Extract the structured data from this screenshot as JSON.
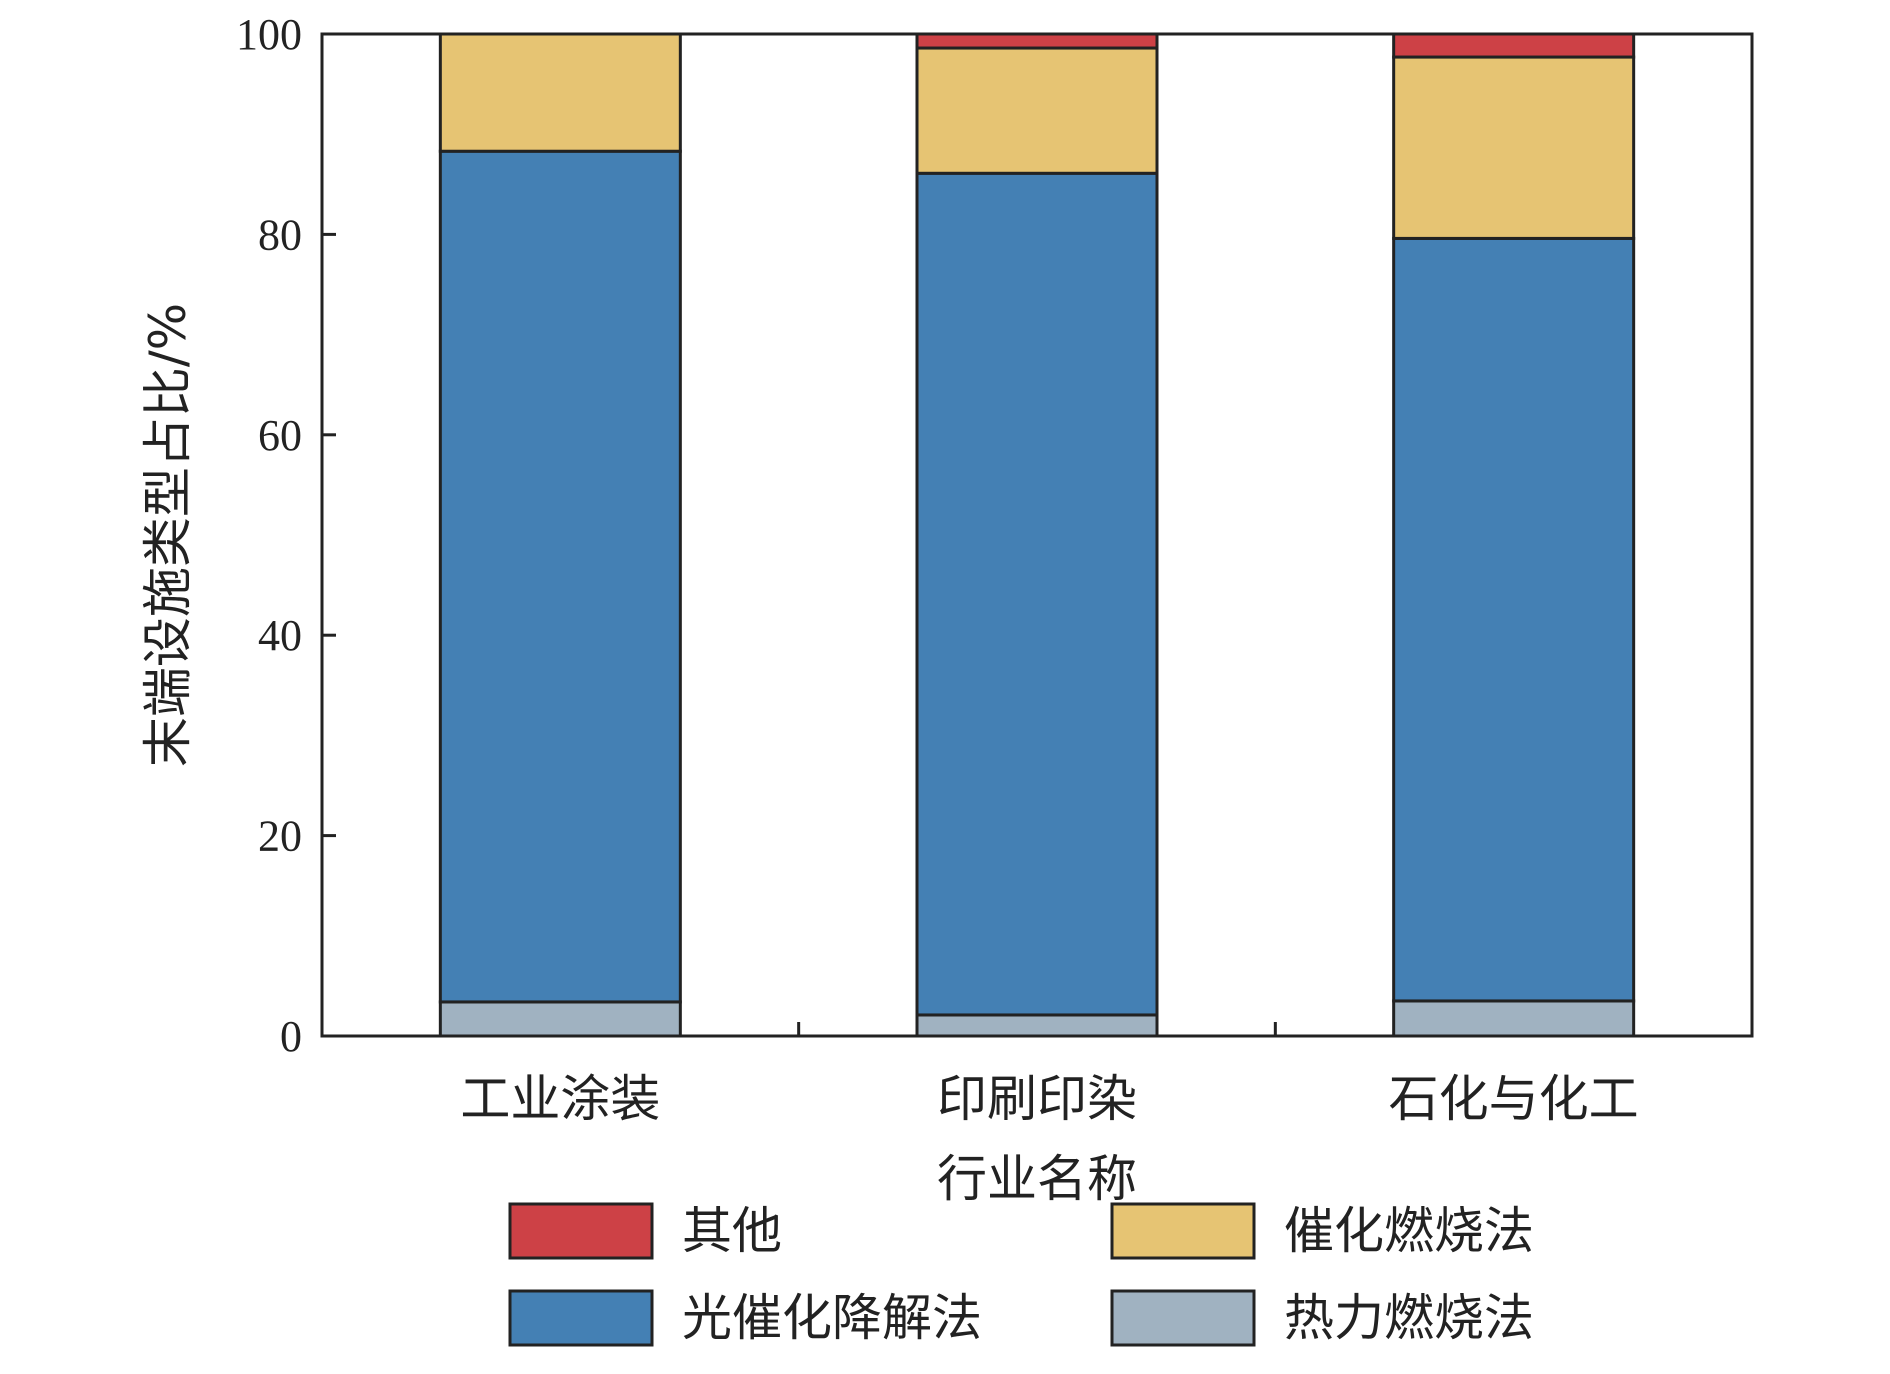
{
  "chart_data": {
    "type": "bar",
    "stacked": true,
    "categories": [
      "工业涂装",
      "印刷印染",
      "石化与化工"
    ],
    "series": [
      {
        "name": "热力燃烧法",
        "color": "#a0b2c1",
        "values": [
          3.4,
          2.1,
          3.5
        ]
      },
      {
        "name": "光催化降解法",
        "color": "#4480b4",
        "values": [
          84.9,
          84.0,
          76.1
        ]
      },
      {
        "name": "催化燃烧法",
        "color": "#e6c473",
        "values": [
          11.7,
          12.5,
          18.1
        ]
      },
      {
        "name": "其他",
        "color": "#cd4146",
        "values": [
          0.0,
          1.4,
          2.3
        ]
      }
    ],
    "xlabel": "行业名称",
    "ylabel": "末端设施类型占比/%",
    "ylim": [
      0,
      100
    ],
    "yticks": [
      0,
      20,
      40,
      60,
      80,
      100
    ],
    "grid": false,
    "legend": {
      "placement": "bottom",
      "order": [
        "其他",
        "催化燃烧法",
        "光催化降解法",
        "热力燃烧法"
      ]
    }
  }
}
